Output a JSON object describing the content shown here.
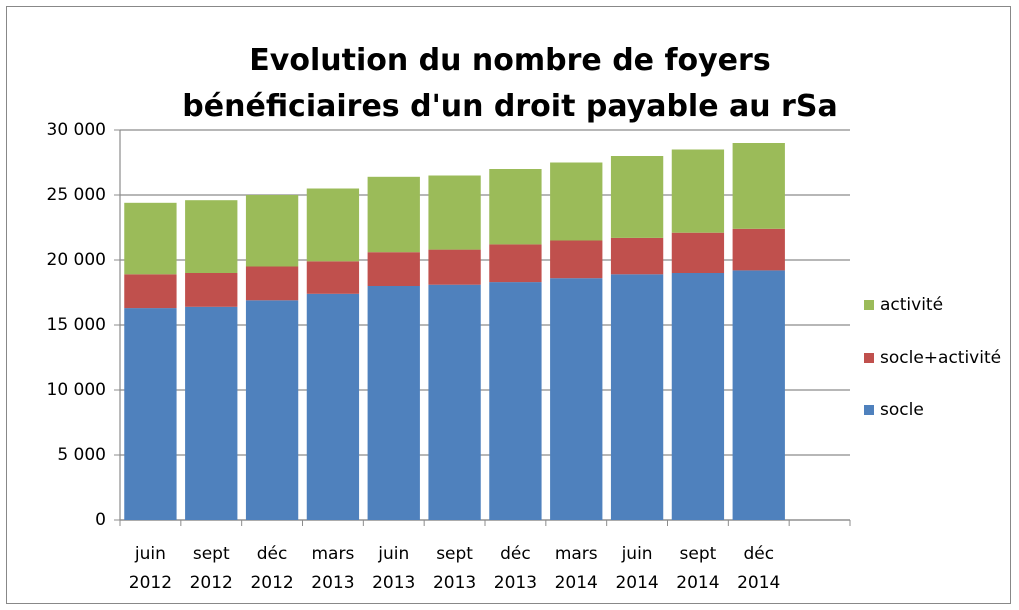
{
  "chart_data": {
    "type": "stacked_bar",
    "title": "Evolution du nombre de foyers bénéficiaires d'un droit payable au rSa",
    "categories": [
      "juin 2012",
      "sept 2012",
      "déc 2012",
      "mars 2013",
      "juin 2013",
      "sept 2013",
      "déc 2013",
      "mars 2014",
      "juin 2014",
      "sept 2014",
      "déc 2014",
      null
    ],
    "series": [
      {
        "name": "socle",
        "color": "#4f81bd",
        "values": [
          16300,
          16400,
          16900,
          17400,
          18000,
          18100,
          18300,
          18600,
          18900,
          19000,
          19200,
          null
        ]
      },
      {
        "name": "socle+activité",
        "color": "#c0504d",
        "values": [
          2600,
          2600,
          2600,
          2500,
          2600,
          2700,
          2900,
          2900,
          2800,
          3100,
          3200,
          null
        ]
      },
      {
        "name": "activité",
        "color": "#9bbb59",
        "values": [
          5500,
          5600,
          5500,
          5600,
          5800,
          5700,
          5800,
          6000,
          6300,
          6400,
          6600,
          null
        ]
      }
    ],
    "ylim": [
      0,
      30000
    ],
    "yticks": [
      0,
      {
        "value": 5000,
        "label": "5 000"
      },
      {
        "value": 10000,
        "label": "10 000"
      },
      {
        "value": 15000,
        "label": "15 000"
      },
      {
        "value": 20000,
        "label": "20 000"
      },
      {
        "value": 25000,
        "label": "25 000"
      },
      {
        "value": 30000,
        "label": "30 000"
      }
    ],
    "grid": true,
    "legend": "right"
  }
}
